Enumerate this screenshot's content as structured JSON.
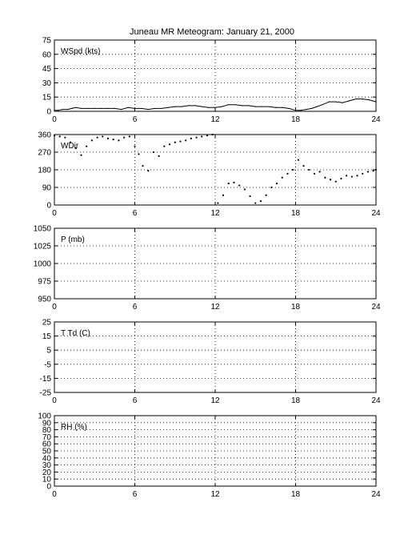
{
  "title": "Juneau MR Meteogram:    January 21, 2000",
  "chart_data": [
    {
      "type": "line",
      "label": "WSpd (kts)",
      "x_ticks": [
        "0",
        "6",
        "12",
        "18",
        "24"
      ],
      "xlim": [
        0,
        24
      ],
      "ylim": [
        0,
        75
      ],
      "y_ticks": [
        "0",
        "15",
        "30",
        "45",
        "60",
        "75"
      ],
      "grid": true,
      "x": [
        0,
        0.3,
        0.6,
        1.0,
        1.3,
        1.6,
        2.0,
        2.5,
        3.0,
        3.5,
        4.0,
        4.5,
        5.0,
        5.5,
        6.0,
        6.5,
        7.0,
        7.5,
        8.0,
        8.5,
        9.0,
        9.5,
        10.0,
        10.5,
        11.0,
        11.5,
        12.0,
        12.5,
        13.0,
        13.5,
        14.0,
        14.5,
        15.0,
        15.5,
        16.0,
        16.5,
        17.0,
        17.5,
        18.0,
        18.4,
        18.8,
        19.2,
        19.6,
        20.0,
        20.5,
        21.0,
        21.5,
        22.0,
        22.5,
        23.0,
        23.5,
        24.0
      ],
      "y": [
        1,
        1,
        2,
        2,
        3,
        4,
        3,
        3,
        3,
        3,
        3,
        3,
        2,
        4,
        3,
        3,
        2,
        3,
        3,
        4,
        5,
        5,
        6,
        6,
        5,
        4,
        4,
        5,
        7,
        7,
        6,
        6,
        5,
        5,
        5,
        4,
        4,
        3,
        1,
        1,
        2,
        3,
        5,
        7,
        10,
        10,
        9,
        11,
        13,
        13,
        12,
        10
      ]
    },
    {
      "type": "scatter",
      "label": "WDir",
      "x_ticks": [
        "0",
        "6",
        "12",
        "18",
        "24"
      ],
      "xlim": [
        0,
        24
      ],
      "ylim": [
        0,
        360
      ],
      "y_ticks": [
        "0",
        "90",
        "180",
        "270",
        "360"
      ],
      "grid": true,
      "x": [
        0,
        0.4,
        0.8,
        1.2,
        1.6,
        2.0,
        2.4,
        2.8,
        3.2,
        3.6,
        4.0,
        4.4,
        4.8,
        5.2,
        5.6,
        6.0,
        6.3,
        6.6,
        7.0,
        7.4,
        7.8,
        8.2,
        8.6,
        9.0,
        9.4,
        9.8,
        10.2,
        10.6,
        11.0,
        11.4,
        11.8,
        12.2,
        12.6,
        13.0,
        13.4,
        13.8,
        14.2,
        14.6,
        15.0,
        15.4,
        15.8,
        16.2,
        16.6,
        17.0,
        17.4,
        17.8,
        18.2,
        18.6,
        19.0,
        19.4,
        19.8,
        20.2,
        20.6,
        21.0,
        21.4,
        21.8,
        22.2,
        22.6,
        23.0,
        23.4,
        23.8,
        24.0
      ],
      "y": [
        355,
        350,
        345,
        320,
        290,
        255,
        300,
        330,
        345,
        350,
        340,
        335,
        330,
        345,
        350,
        300,
        260,
        200,
        175,
        270,
        250,
        300,
        310,
        320,
        325,
        330,
        340,
        345,
        350,
        355,
        360,
        10,
        50,
        110,
        115,
        100,
        80,
        45,
        10,
        20,
        50,
        90,
        110,
        140,
        160,
        180,
        230,
        200,
        180,
        160,
        170,
        140,
        130,
        120,
        135,
        150,
        145,
        150,
        160,
        170,
        175,
        180
      ]
    },
    {
      "type": "line",
      "label": "P (mb)",
      "x_ticks": [
        "0",
        "6",
        "12",
        "18",
        "24"
      ],
      "xlim": [
        0,
        24
      ],
      "ylim": [
        950,
        1050
      ],
      "y_ticks": [
        "950",
        "975",
        "1000",
        "1025",
        "1050"
      ],
      "grid": true,
      "x": [],
      "y": []
    },
    {
      "type": "line",
      "label": "T Td (C)",
      "x_ticks": [
        "0",
        "6",
        "12",
        "18",
        "24"
      ],
      "xlim": [
        0,
        24
      ],
      "ylim": [
        -25,
        25
      ],
      "y_ticks": [
        "-25",
        "-15",
        "-5",
        "5",
        "15",
        "25"
      ],
      "grid": true,
      "x": [],
      "y": []
    },
    {
      "type": "line",
      "label": "RH (%)",
      "x_ticks": [
        "0",
        "6",
        "12",
        "18",
        "24"
      ],
      "xlim": [
        0,
        24
      ],
      "ylim": [
        0,
        100
      ],
      "y_ticks": [
        "0",
        "10",
        "20",
        "30",
        "40",
        "50",
        "60",
        "70",
        "80",
        "90",
        "100"
      ],
      "grid": true,
      "x": [],
      "y": []
    }
  ]
}
